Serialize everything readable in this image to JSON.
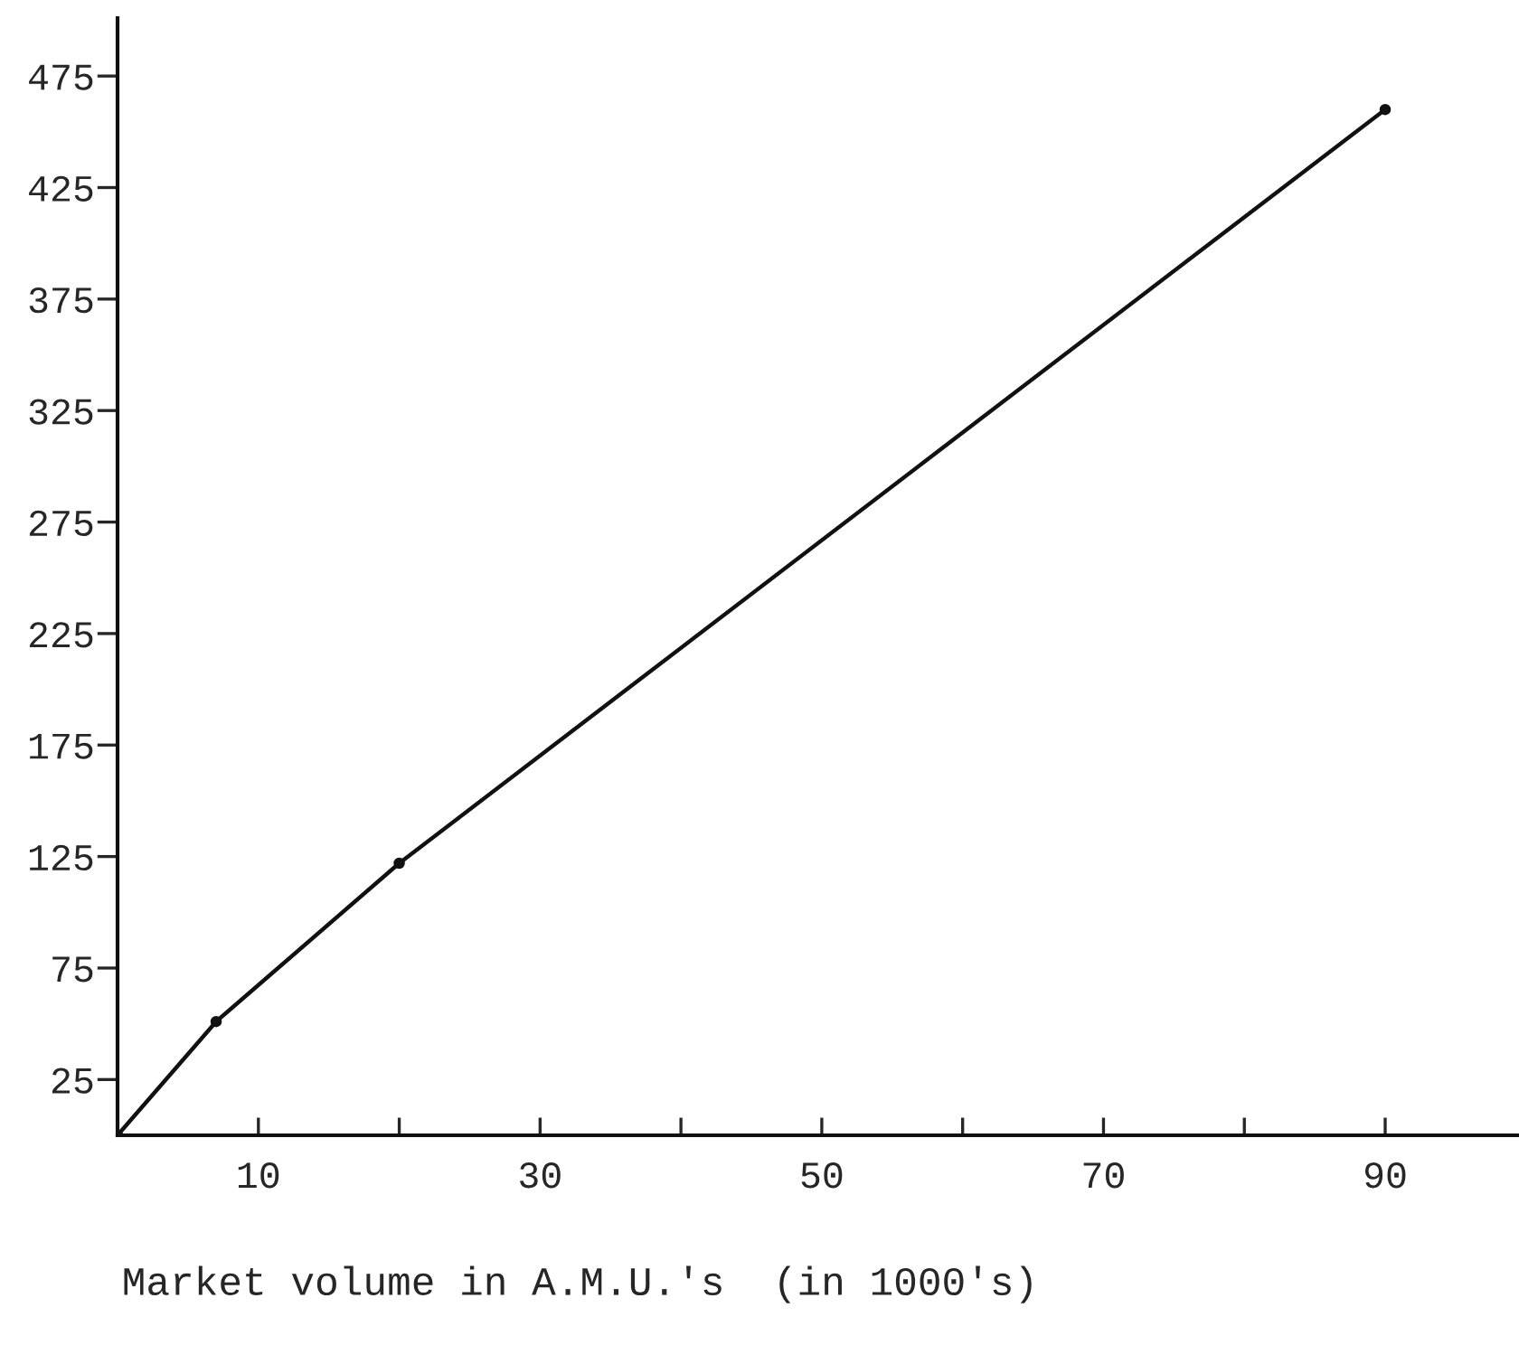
{
  "chart_data": {
    "type": "line",
    "xlabel": "Market volume in A.M.U.'s  (in 1000's)",
    "x": [
      0,
      7,
      20,
      90
    ],
    "series": [
      {
        "color": "#111111",
        "values": [
          0,
          51,
          122,
          460
        ]
      }
    ],
    "marker": "circle",
    "line_style": "solid",
    "xlim": [
      0,
      99.5
    ],
    "ylim": [
      0,
      501
    ],
    "xticks": [
      {
        "value": 10,
        "label": "10"
      },
      {
        "value": 20,
        "label": null
      },
      {
        "value": 30,
        "label": "30"
      },
      {
        "value": 40,
        "label": null
      },
      {
        "value": 50,
        "label": "50"
      },
      {
        "value": 60,
        "label": null
      },
      {
        "value": 70,
        "label": "70"
      },
      {
        "value": 80,
        "label": null
      },
      {
        "value": 90,
        "label": "90"
      }
    ],
    "yticks": [
      25,
      75,
      125,
      175,
      225,
      275,
      325,
      375,
      425,
      475
    ],
    "grid": false,
    "legend": false
  }
}
